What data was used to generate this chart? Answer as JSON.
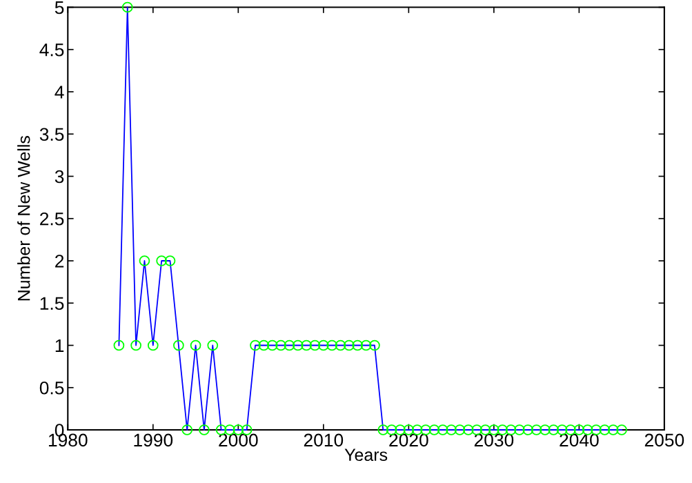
{
  "chart_data": {
    "type": "line",
    "xlabel": "Years",
    "ylabel": "Number of New Wells",
    "x": [
      1986,
      1987,
      1988,
      1989,
      1990,
      1991,
      1992,
      1993,
      1994,
      1995,
      1996,
      1997,
      1998,
      1999,
      2000,
      2001,
      2002,
      2003,
      2004,
      2005,
      2006,
      2007,
      2008,
      2009,
      2010,
      2011,
      2012,
      2013,
      2014,
      2015,
      2016,
      2017,
      2018,
      2019,
      2020,
      2021,
      2022,
      2023,
      2024,
      2025,
      2026,
      2027,
      2028,
      2029,
      2030,
      2031,
      2032,
      2033,
      2034,
      2035,
      2036,
      2037,
      2038,
      2039,
      2040,
      2041,
      2042,
      2043,
      2044,
      2045
    ],
    "series": [
      {
        "color": "#0000ff",
        "colors": [
          "#00ff00",
          "#00ff00",
          "#00ff00",
          "#00ff00",
          "#00ff00",
          "#00ff00",
          "#00ff00",
          "#00ff00",
          "#00ff00",
          "#00ff00",
          "#00ff00",
          "#00ff00",
          "#00ff00",
          "#00ff00",
          "#00ff00",
          "#00ff00",
          "#00ff00",
          "#00ff00",
          "#00ff00",
          "#00ff00",
          "#00ff00",
          "#00ff00",
          "#00ff00",
          "#00ff00",
          "#00ff00",
          "#00ff00",
          "#00ff00",
          "#00ff00",
          "#00ff00",
          "#00ff00",
          "#00ff00",
          "#00ff00",
          "#00ff00",
          "#00ff00",
          "#00ff00",
          "#00ff00",
          "#00ff00",
          "#00ff00",
          "#00ff00",
          "#00ff00",
          "#00ff00",
          "#00ff00",
          "#00ff00",
          "#00ff00",
          "#00ff00",
          "#00ff00",
          "#00ff00",
          "#00ff00",
          "#00ff00",
          "#00ff00",
          "#00ff00",
          "#00ff00",
          "#00ff00",
          "#00ff00",
          "#00ff00",
          "#00ff00",
          "#00ff00",
          "#00ff00",
          "#00ff00",
          "#00ff00"
        ],
        "values": [
          1,
          5,
          1,
          2,
          1,
          2,
          2,
          1,
          0,
          1,
          0,
          1,
          0,
          0,
          0,
          0,
          1,
          1,
          1,
          1,
          1,
          1,
          1,
          1,
          1,
          1,
          1,
          1,
          1,
          1,
          1,
          0,
          0,
          0,
          0,
          0,
          0,
          0,
          0,
          0,
          0,
          0,
          0,
          0,
          0,
          0,
          0,
          0,
          0,
          0,
          0,
          0,
          0,
          0,
          0,
          0,
          0,
          0,
          0,
          0
        ]
      }
    ],
    "marker": "circle",
    "line_style": "solid",
    "grid": false,
    "legend": false,
    "xlim": [
      1980,
      2050
    ],
    "xticks": [
      1980,
      1990,
      2000,
      2010,
      2020,
      2030,
      2040,
      2050
    ],
    "ylim": [
      0,
      5
    ],
    "yticks": [
      0,
      0.5,
      1,
      1.5,
      2,
      2.5,
      3,
      3.5,
      4,
      4.5,
      5
    ]
  }
}
